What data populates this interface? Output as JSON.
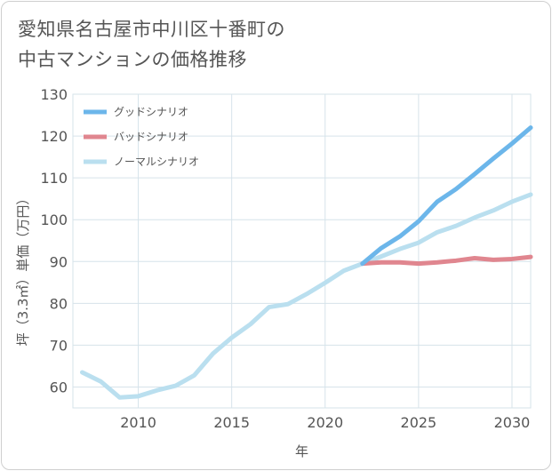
{
  "title": {
    "line1": "愛知県名古屋市中川区十番町の",
    "line2": "中古マンションの価格推移"
  },
  "chart_data": {
    "type": "line",
    "xlabel": "年",
    "ylabel": "坪（3.3㎡）単価（万円）",
    "xlim": [
      2006.5,
      2031
    ],
    "ylim": [
      55,
      130
    ],
    "xticks": [
      2010,
      2015,
      2020,
      2025,
      2030
    ],
    "yticks": [
      60,
      70,
      80,
      90,
      100,
      110,
      120,
      130
    ],
    "grid": true,
    "legend_position": "top-left",
    "series": [
      {
        "name": "グッドシナリオ",
        "color": "#6cb6ea",
        "x": [
          2022,
          2023,
          2024,
          2025,
          2026,
          2027,
          2028,
          2029,
          2030,
          2031
        ],
        "y": [
          89.5,
          93.2,
          96.0,
          99.6,
          104.3,
          107.3,
          110.9,
          114.6,
          118.2,
          122.0
        ]
      },
      {
        "name": "バッドシナリオ",
        "color": "#e0868f",
        "x": [
          2022,
          2023,
          2024,
          2025,
          2026,
          2027,
          2028,
          2029,
          2030,
          2031
        ],
        "y": [
          89.5,
          89.8,
          89.8,
          89.5,
          89.8,
          90.2,
          90.8,
          90.4,
          90.6,
          91.1
        ]
      },
      {
        "name": "ノーマルシナリオ",
        "color": "#badfef",
        "x": [
          2007,
          2008,
          2009,
          2010,
          2011,
          2012,
          2013,
          2014,
          2015,
          2016,
          2017,
          2018,
          2019,
          2020,
          2021,
          2022,
          2023,
          2024,
          2025,
          2026,
          2027,
          2028,
          2029,
          2030,
          2031
        ],
        "y": [
          63.5,
          61.3,
          57.5,
          57.8,
          59.2,
          60.3,
          62.8,
          68.0,
          71.8,
          75.0,
          79.1,
          79.8,
          82.2,
          84.9,
          87.8,
          89.5,
          91.2,
          93.0,
          94.5,
          97.0,
          98.5,
          100.5,
          102.2,
          104.3,
          106.0
        ]
      }
    ]
  }
}
